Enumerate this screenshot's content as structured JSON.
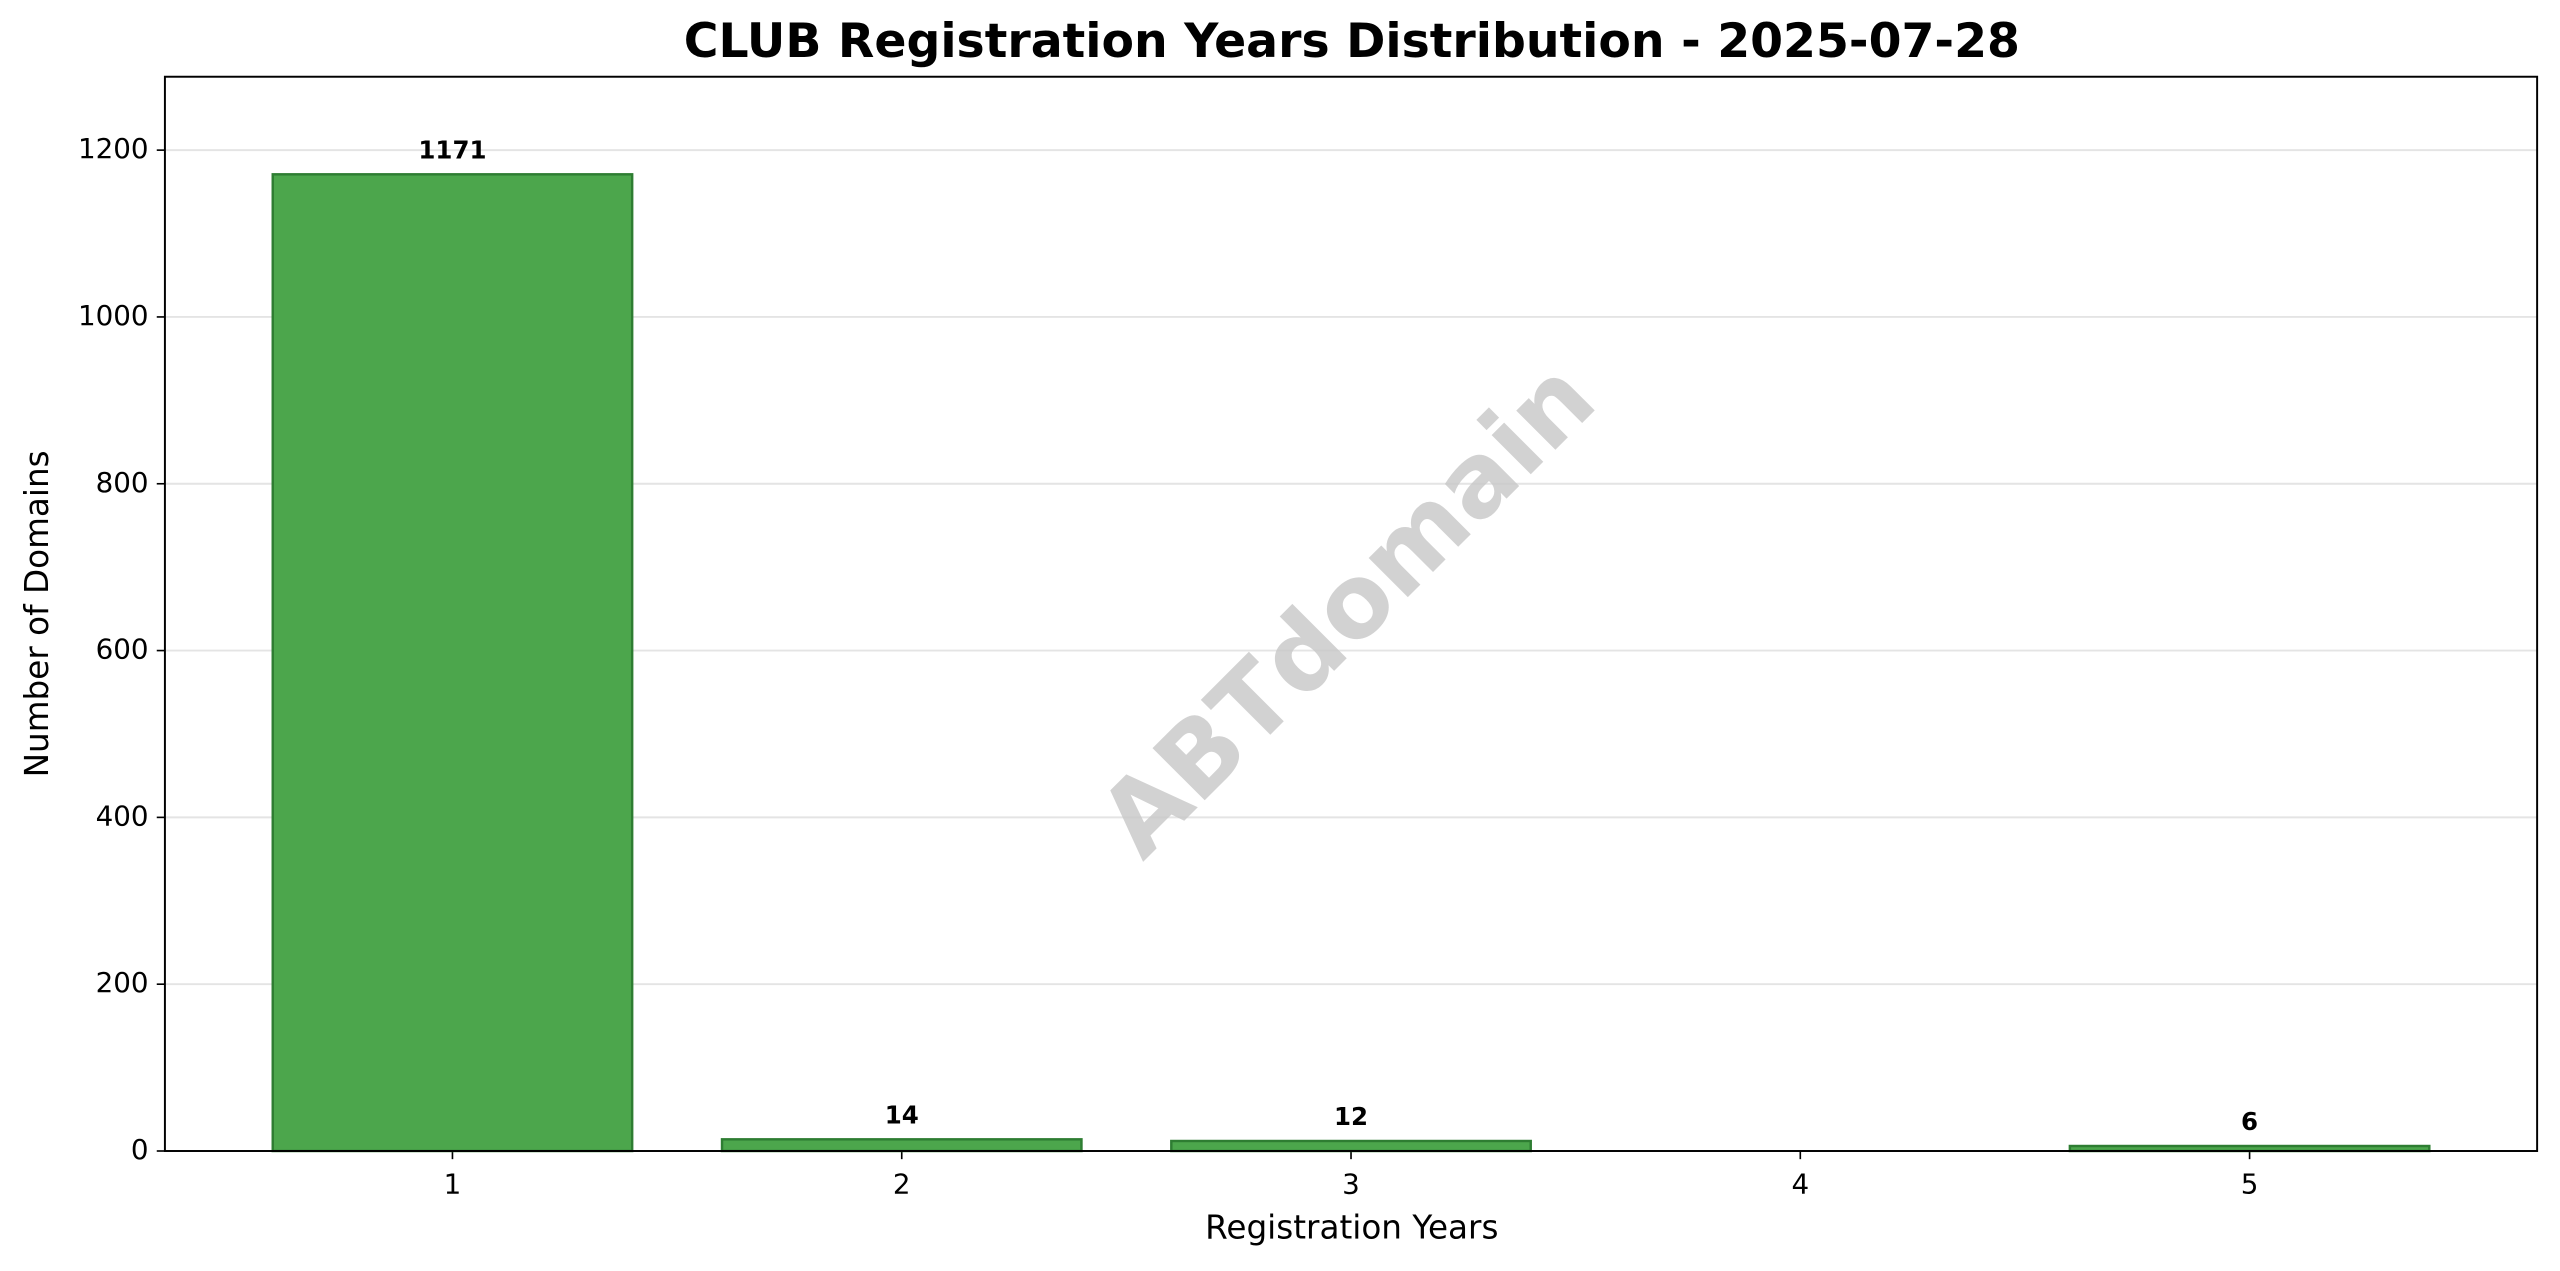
{
  "chart_data": {
    "type": "bar",
    "title": "CLUB Registration Years Distribution - 2025-07-28",
    "x_label": "Registration Years",
    "y_label": "Number of Domains",
    "watermark": "ABTdomain",
    "x": [
      1,
      2,
      3,
      5
    ],
    "values": [
      1171,
      14,
      12,
      6
    ],
    "color": "#4ca64c",
    "edge_color": "#2e7d32",
    "xlim": [
      0.36,
      5.64
    ],
    "xticks": [
      1,
      2,
      3,
      4,
      5
    ],
    "ylim": [
      0,
      1288
    ],
    "yticks": [
      0,
      200,
      400,
      600,
      800,
      1000,
      1200
    ],
    "grid": true
  }
}
